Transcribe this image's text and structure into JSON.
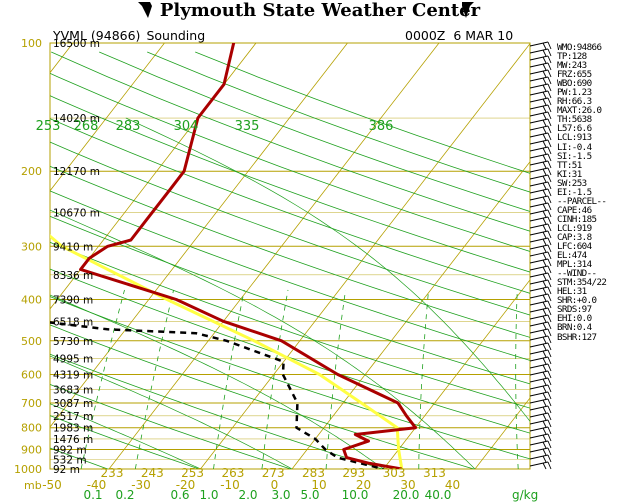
{
  "header": {
    "title": "Plymouth State Weather Center"
  },
  "colors": {
    "isobar": "#b5a000",
    "isotherm": "#b5a000",
    "dry_adiabat": "#1ea01e",
    "moist_adiabat": "#1ea01e",
    "mixing_ratio": "#1ea01e",
    "temperature": "#aa0000",
    "dewpoint": "#000000",
    "parcel": "#ffff44",
    "pressure_label": "#b5a000",
    "height_label": "#000000"
  },
  "chart_data": {
    "type": "skew-t",
    "station": "YVML (94866)",
    "sounding_label": "Sounding",
    "time": "0000Z",
    "date": "6 MAR 10",
    "pressure_levels": [
      100,
      200,
      300,
      400,
      500,
      600,
      700,
      800,
      900,
      1000
    ],
    "pressure_labels": [
      "100",
      "200",
      "300",
      "400",
      "500",
      "600",
      "700",
      "800",
      "900",
      "1000"
    ],
    "height_labels": [
      {
        "p": 100,
        "text": "16500 m"
      },
      {
        "p": 150,
        "text": "14020 m"
      },
      {
        "p": 200,
        "text": "12170 m"
      },
      {
        "p": 250,
        "text": "10670 m"
      },
      {
        "p": 300,
        "text": "9410 m"
      },
      {
        "p": 350,
        "text": "8336 m"
      },
      {
        "p": 400,
        "text": "7390 m"
      },
      {
        "p": 450,
        "text": "6518 m"
      },
      {
        "p": 500,
        "text": "5730 m"
      },
      {
        "p": 550,
        "text": "4995 m"
      },
      {
        "p": 600,
        "text": "4319 m"
      },
      {
        "p": 650,
        "text": "3683 m"
      },
      {
        "p": 700,
        "text": "3087 m"
      },
      {
        "p": 750,
        "text": "2517 m"
      },
      {
        "p": 800,
        "text": "1983 m"
      },
      {
        "p": 850,
        "text": "1476 m"
      },
      {
        "p": 900,
        "text": "992 m"
      },
      {
        "p": 950,
        "text": "532 m"
      },
      {
        "p": 1000,
        "text": "92 m"
      }
    ],
    "temperature_axis": {
      "unit_label": "mb",
      "ticks": [
        "-50",
        "-40",
        "-30",
        "-20",
        "-10",
        "0",
        "10",
        "20",
        "30",
        "40"
      ]
    },
    "potential_temperature_labels_bottom": [
      "233",
      "243",
      "253",
      "263",
      "273",
      "283",
      "293",
      "303",
      "313"
    ],
    "potential_temperature_labels_top": [
      "253",
      "268",
      "283",
      "304",
      "335",
      "386"
    ],
    "mixing_ratio_axis": {
      "unit_label": "g/kg",
      "ticks": [
        "0.1",
        "0.2",
        "0.6",
        "1.0",
        "2.0",
        "3.0",
        "5.0",
        "10.0",
        "20.0",
        "40.0"
      ]
    },
    "series": [
      {
        "name": "Temperature",
        "points": [
          [
            95,
            -43
          ],
          [
            125,
            -40
          ],
          [
            150,
            -40
          ],
          [
            200,
            -37
          ],
          [
            220,
            -37
          ],
          [
            260,
            -37
          ],
          [
            290,
            -37
          ],
          [
            300,
            -39
          ],
          [
            320,
            -40
          ],
          [
            340,
            -40
          ],
          [
            400,
            -27
          ],
          [
            450,
            -20
          ],
          [
            500,
            -12
          ],
          [
            600,
            -3
          ],
          [
            700,
            6
          ],
          [
            750,
            8
          ],
          [
            800,
            10
          ],
          [
            830,
            4
          ],
          [
            860,
            6
          ],
          [
            900,
            4
          ],
          [
            940,
            5
          ],
          [
            970,
            8
          ],
          [
            1000,
            12
          ]
        ]
      },
      {
        "name": "Dewpoint",
        "points": [
          [
            95,
            -80
          ],
          [
            120,
            -78
          ],
          [
            150,
            -78
          ],
          [
            180,
            -72
          ],
          [
            200,
            -70
          ],
          [
            230,
            -70
          ],
          [
            250,
            -71
          ],
          [
            260,
            -69
          ],
          [
            280,
            -62
          ],
          [
            300,
            -56
          ],
          [
            330,
            -58
          ],
          [
            370,
            -56
          ],
          [
            420,
            -48
          ],
          [
            450,
            -40
          ],
          [
            470,
            -32
          ],
          [
            480,
            -22
          ],
          [
            500,
            -18
          ],
          [
            560,
            -10
          ],
          [
            600,
            -9
          ],
          [
            700,
            -5
          ],
          [
            800,
            -3
          ],
          [
            850,
            0
          ],
          [
            900,
            2
          ],
          [
            940,
            4
          ],
          [
            1000,
            10
          ]
        ]
      },
      {
        "name": "Parcel",
        "points": [
          [
            120,
            -70
          ],
          [
            200,
            -60
          ],
          [
            300,
            -44
          ],
          [
            400,
            -28
          ],
          [
            500,
            -15
          ],
          [
            600,
            -5
          ],
          [
            700,
            2
          ],
          [
            800,
            8
          ],
          [
            900,
            10
          ],
          [
            1000,
            12
          ]
        ]
      }
    ],
    "wind_barbs": "present along right edge",
    "stats": [
      "WMO:94866",
      "TP:128",
      "MW:243",
      "FRZ:655",
      "WBO:690",
      "PW:1.23",
      "RH:66.3",
      "MAXT:26.0",
      "TH:5638",
      "L57:6.6",
      "LCL:913",
      "LI:-0.4",
      "SI:-1.5",
      "TT:51",
      "KI:31",
      "SW:253",
      "EI:-1.5",
      "--PARCEL--",
      "CAPE:46",
      "CINH:185",
      "LCL:919",
      "CAP:3.8",
      "LFC:604",
      "EL:474",
      "MPL:314",
      "--WIND--",
      "STM:354/22",
      "HEL:31",
      "SHR:+0.0",
      "SRDS:97",
      "EHI:0.0",
      "BRN:0.4",
      "BSHR:127"
    ]
  }
}
